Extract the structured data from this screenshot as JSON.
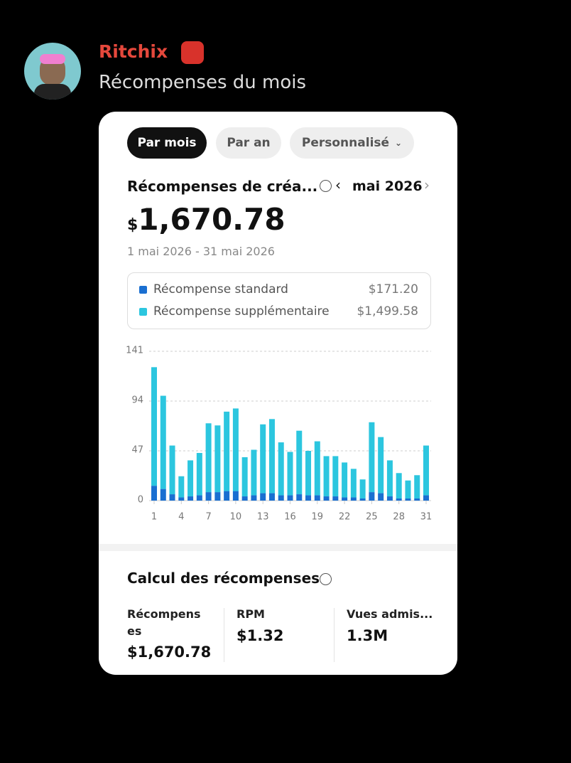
{
  "header": {
    "username": "Ritchix",
    "message": "Récompenses du mois"
  },
  "card": {
    "tabs": [
      "Par mois",
      "Par an",
      "Personnalisé"
    ],
    "title": "Récompenses de créa...",
    "period": "mai 2026",
    "currency": "$",
    "amount": "1,670.78",
    "date_range": "1 mai 2026 - 31 mai 2026",
    "legend_totals": [
      "$171.20",
      "$1,499.58"
    ]
  },
  "chart_data": {
    "type": "stacked-bar",
    "categories": [
      "1",
      null,
      null,
      "4",
      null,
      null,
      "7",
      null,
      null,
      "10",
      null,
      null,
      "13",
      null,
      null,
      "16",
      null,
      null,
      "19",
      null,
      null,
      "22",
      null,
      null,
      "25",
      null,
      null,
      "28",
      null,
      null,
      "31"
    ],
    "series": [
      {
        "name": "Récompense standard",
        "color": "#1a6fd1",
        "values": [
          14,
          11,
          6,
          3,
          4,
          5,
          8,
          8,
          9,
          9,
          4,
          5,
          7,
          7,
          5,
          5,
          6,
          5,
          5,
          4,
          4,
          3,
          3,
          2,
          8,
          7,
          4,
          2,
          2,
          2,
          5
        ]
      },
      {
        "name": "Récompense supplémentaire",
        "color": "#2cc6df",
        "values": [
          112,
          88,
          46,
          20,
          34,
          40,
          65,
          63,
          75,
          78,
          37,
          43,
          65,
          70,
          50,
          41,
          60,
          42,
          51,
          38,
          38,
          33,
          27,
          18,
          66,
          53,
          34,
          24,
          17,
          22,
          47
        ]
      }
    ],
    "ylim": [
      0,
      141
    ],
    "yticks": [
      0,
      47,
      94,
      141
    ],
    "grid": true
  },
  "calc": {
    "title": "Calcul des récompenses",
    "columns": [
      {
        "label": "Récompenses",
        "value": "$1,670.78"
      },
      {
        "label": "RPM",
        "value": "$1.32"
      },
      {
        "label": "Vues admis...",
        "value": "1.3M"
      }
    ]
  }
}
